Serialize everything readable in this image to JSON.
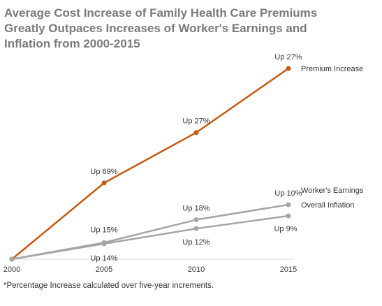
{
  "title_lines": [
    "Average Cost Increase of Family Health Care Premiums",
    "Greatly Outpaces Increases of Worker's Earnings and",
    "Inflation from 2000-2015"
  ],
  "footnote": "*Percentage Increase calculated over five-year increments.",
  "colors": {
    "premium": "#C55A11",
    "earnings": "#A5A5A5",
    "inflation": "#A5A5A5",
    "axis": "#D9D9D9",
    "title": "#7A7A7A"
  },
  "chart_data": {
    "type": "line",
    "x": [
      2000,
      2005,
      2010,
      2015
    ],
    "ylabel": "",
    "xlabel": "",
    "grid": false,
    "series": [
      {
        "name": "Premium Increase",
        "key": "premium",
        "values": [
          100,
          169,
          214.6,
          272.6
        ],
        "point_labels": [
          "",
          "Up 69%",
          "Up 27%",
          "Up 27%"
        ]
      },
      {
        "name": "Worker's Earnings",
        "key": "earnings",
        "values": [
          100,
          115,
          135.7,
          149.3
        ],
        "point_labels": [
          "",
          "Up 15%",
          "Up 18%",
          "Up 10%"
        ]
      },
      {
        "name": "Overall Inflation",
        "key": "inflation",
        "values": [
          100,
          114,
          127.7,
          139.2
        ],
        "point_labels": [
          "",
          "Up 14%",
          "Up 12%",
          "Up 9%"
        ]
      }
    ]
  }
}
